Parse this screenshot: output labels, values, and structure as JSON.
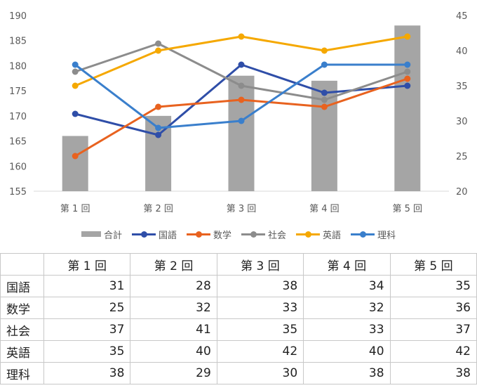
{
  "chart_data": {
    "type": "bar+line (combo, dual axis)",
    "categories": [
      "第 1 回",
      "第 2 回",
      "第 3 回",
      "第 4 回",
      "第 5 回"
    ],
    "bar_series": {
      "name": "合計",
      "values": [
        166,
        170,
        178,
        177,
        188
      ],
      "axis": "left",
      "color": "#a5a5a5"
    },
    "line_series": [
      {
        "name": "国語",
        "values": [
          31,
          28,
          38,
          34,
          35
        ],
        "color": "#2f4ea8"
      },
      {
        "name": "数学",
        "values": [
          25,
          32,
          33,
          32,
          36
        ],
        "color": "#e8621f"
      },
      {
        "name": "社会",
        "values": [
          37,
          41,
          35,
          33,
          37
        ],
        "color": "#8c8c8c"
      },
      {
        "name": "英語",
        "values": [
          35,
          40,
          42,
          40,
          42
        ],
        "color": "#f5a800"
      },
      {
        "name": "理科",
        "values": [
          38,
          29,
          30,
          38,
          38
        ],
        "color": "#3a7fcc"
      }
    ],
    "y_left": {
      "min": 155,
      "max": 190,
      "ticks": [
        "155",
        "160",
        "165",
        "170",
        "175",
        "180",
        "185",
        "190"
      ]
    },
    "y_right": {
      "min": 20,
      "max": 45,
      "ticks": [
        "20",
        "25",
        "30",
        "35",
        "40",
        "45"
      ]
    },
    "legend_position": "bottom",
    "grid": false
  },
  "table": {
    "headers": [
      "",
      "第 1 回",
      "第 2 回",
      "第 3 回",
      "第 4 回",
      "第 5 回"
    ],
    "rows": [
      {
        "label": "国語",
        "values": [
          "31",
          "28",
          "38",
          "34",
          "35"
        ]
      },
      {
        "label": "数学",
        "values": [
          "25",
          "32",
          "33",
          "32",
          "36"
        ]
      },
      {
        "label": "社会",
        "values": [
          "37",
          "41",
          "35",
          "33",
          "37"
        ]
      },
      {
        "label": "英語",
        "values": [
          "35",
          "40",
          "42",
          "40",
          "42"
        ]
      },
      {
        "label": "理科",
        "values": [
          "38",
          "29",
          "30",
          "38",
          "38"
        ]
      }
    ]
  }
}
